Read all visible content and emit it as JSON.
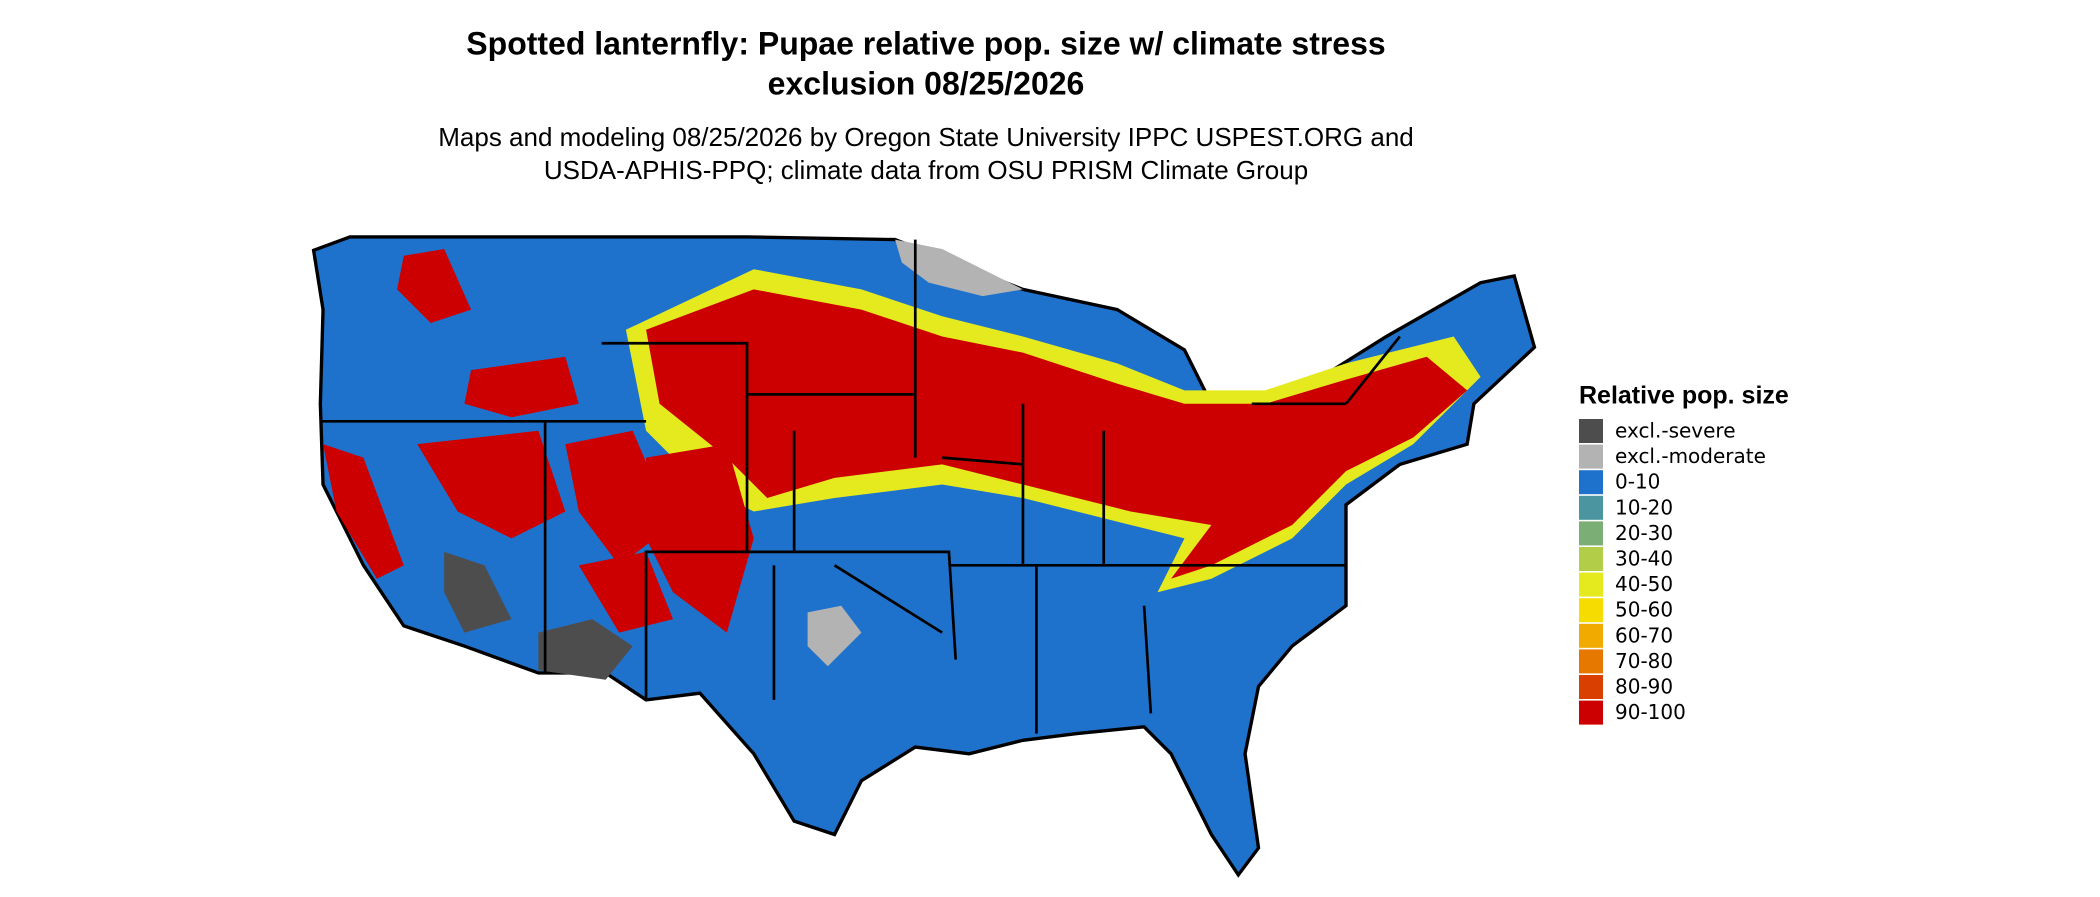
{
  "header": {
    "title_lines": [
      "Spotted lanternfly: Pupae relative pop. size w/ climate stress",
      "exclusion 08/25/2026"
    ],
    "subtitle_lines": [
      "Maps and modeling 08/25/2026 by Oregon State University IPPC USPEST.ORG and",
      "USDA-APHIS-PPQ; climate data from OSU PRISM Climate Group"
    ]
  },
  "legend": {
    "title": "Relative pop. size",
    "items": [
      {
        "label": "excl.-severe",
        "color": "#4d4d4d"
      },
      {
        "label": "excl.-moderate",
        "color": "#b3b3b3"
      },
      {
        "label": "0-10",
        "color": "#1f72cc"
      },
      {
        "label": "10-20",
        "color": "#4a95a0"
      },
      {
        "label": "20-30",
        "color": "#7aae74"
      },
      {
        "label": "30-40",
        "color": "#b2cd47"
      },
      {
        "label": "40-50",
        "color": "#e5ea1e"
      },
      {
        "label": "50-60",
        "color": "#f7dc00"
      },
      {
        "label": "60-70",
        "color": "#f0aa00"
      },
      {
        "label": "70-80",
        "color": "#e67800"
      },
      {
        "label": "80-90",
        "color": "#d94000"
      },
      {
        "label": "90-100",
        "color": "#cc0000"
      }
    ]
  }
}
